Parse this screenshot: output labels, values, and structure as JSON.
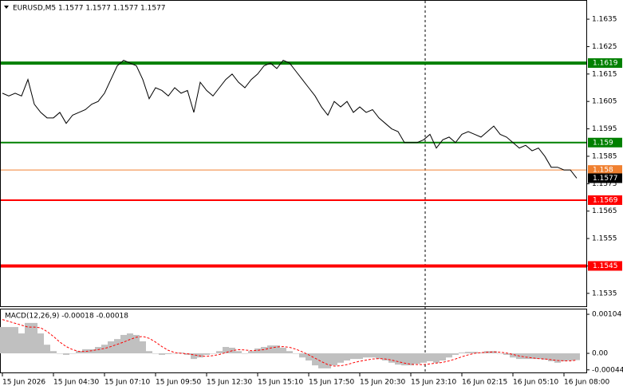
{
  "chart_data": [
    {
      "type": "line",
      "title": "EURUSD,M5  1.1577 1.1577 1.1577 1.1577",
      "categories": [
        "15 Jun 2026",
        null,
        null,
        null,
        null,
        null,
        null,
        null,
        "15 Jun 04:30",
        null,
        null,
        null,
        null,
        null,
        null,
        null,
        "15 Jun 07:10",
        null,
        null,
        null,
        null,
        null,
        null,
        null,
        "15 Jun 09:50",
        null,
        null,
        null,
        null,
        null,
        null,
        null,
        "15 Jun 12:30",
        null,
        null,
        null,
        null,
        null,
        null,
        null,
        "15 Jun 15:10",
        null,
        null,
        null,
        null,
        null,
        null,
        null,
        "15 Jun 17:50",
        null,
        null,
        null,
        null,
        null,
        null,
        null,
        "15 Jun 20:30",
        null,
        null,
        null,
        null,
        null,
        null,
        null,
        "15 Jun 23:10",
        null,
        null,
        null,
        null,
        null,
        null,
        null,
        "16 Jun 02:15",
        null,
        null,
        null,
        null,
        null,
        null,
        null,
        "16 Jun 05:10",
        null,
        null,
        null,
        null,
        null,
        null,
        null,
        "16 Jun 08:00",
        null,
        null
      ],
      "series": [
        {
          "color": "#000000",
          "values": [
            1.1608,
            1.1607,
            1.1608,
            1.1607,
            1.1613,
            1.1604,
            1.1601,
            1.1599,
            1.1599,
            1.1601,
            1.1597,
            1.16,
            1.1601,
            1.1602,
            1.1604,
            1.1605,
            1.1608,
            1.1613,
            1.1618,
            1.162,
            1.1619,
            1.1618,
            1.1613,
            1.1606,
            1.161,
            1.1609,
            1.1607,
            1.161,
            1.1608,
            1.1609,
            1.1601,
            1.1612,
            1.1609,
            1.1607,
            1.161,
            1.1613,
            1.1615,
            1.1612,
            1.161,
            1.1613,
            1.1615,
            1.1618,
            1.1619,
            1.1617,
            1.162,
            1.1619,
            1.1616,
            1.1613,
            1.161,
            1.1607,
            1.1603,
            1.16,
            1.1605,
            1.1603,
            1.1605,
            1.1601,
            1.1603,
            1.1601,
            1.1602,
            1.1599,
            1.1597,
            1.1595,
            1.1594,
            1.159,
            1.159,
            1.159,
            1.1591,
            1.1593,
            1.1588,
            1.1591,
            1.1592,
            1.159,
            1.1593,
            1.1594,
            1.1593,
            1.1592,
            1.1594,
            1.1596,
            1.1593,
            1.1592,
            1.159,
            1.1588,
            1.1589,
            1.1587,
            1.1588,
            1.1585,
            1.1581,
            1.1581,
            1.158,
            1.158,
            1.1577
          ]
        }
      ],
      "ylim": [
        1.153,
        1.1642
      ],
      "yticks": [
        1.1635,
        1.1625,
        1.1615,
        1.1605,
        1.1595,
        1.1585,
        1.1575,
        1.1565,
        1.1555,
        1.1545,
        1.1535
      ],
      "levels": [
        {
          "value": 1.1619,
          "color": "#008000",
          "line_width": 4
        },
        {
          "value": 1.159,
          "color": "#008000",
          "line_width": 2
        },
        {
          "value": 1.158,
          "color": "#f08030",
          "line_width": 1
        },
        {
          "value": 1.1569,
          "color": "#ff0000",
          "line_width": 2
        },
        {
          "value": 1.1545,
          "color": "#ff0000",
          "line_width": 4
        }
      ],
      "last_price_color": "#000000"
    },
    {
      "type": "macd",
      "title": "MACD(12,26,9) -0.00018 -0.00018",
      "series": [
        {
          "kind": "bar",
          "color": "#c0c0c0",
          "values": [
            0.0007,
            0.0007,
            0.0007,
            0.00053,
            0.00081,
            0.00081,
            0.00053,
            0.00023,
            6e-05,
            0,
            -4e-05,
            0,
            6e-05,
            0.00011,
            0.00011,
            0.00017,
            0.00023,
            0.00032,
            0.00038,
            0.00049,
            0.00053,
            0.00049,
            0.00032,
            6e-05,
            0,
            -4e-05,
            -2e-05,
            0,
            2e-05,
            -4e-05,
            -0.00015,
            -0.00011,
            -4e-05,
            0,
            6e-05,
            0.00017,
            0.00015,
            6e-05,
            0,
            6e-05,
            0.00013,
            0.00017,
            0.00021,
            0.00021,
            0.00015,
            6e-05,
            0,
            -0.00011,
            -0.00019,
            -0.00032,
            -0.0004,
            -0.0004,
            -0.00032,
            -0.00025,
            -0.00019,
            -0.00015,
            -0.00015,
            -0.00011,
            -0.00011,
            -0.00015,
            -0.00019,
            -0.00025,
            -0.0003,
            -0.00032,
            -0.00032,
            -0.00028,
            -0.00025,
            -0.00021,
            -0.00025,
            -0.00019,
            -0.00011,
            -4e-05,
            2e-05,
            4e-05,
            4e-05,
            2e-05,
            6e-05,
            6e-05,
            0,
            -4e-05,
            -0.00011,
            -0.00015,
            -0.00015,
            -0.00015,
            -0.00015,
            -0.00017,
            -0.00021,
            -0.00025,
            -0.00021,
            -0.00019,
            -0.00018
          ]
        },
        {
          "kind": "dashed-line",
          "color": "#ff0000",
          "values": [
            0.0009,
            0.00085,
            0.0008,
            0.00075,
            0.0007,
            0.0007,
            0.00068,
            0.00058,
            0.00045,
            0.0003,
            0.00018,
            0.0001,
            5e-05,
            5e-05,
            7e-05,
            0.0001,
            0.00013,
            0.00018,
            0.00024,
            0.0003,
            0.00037,
            0.00043,
            0.00045,
            0.0004,
            0.0003,
            0.00018,
            8e-05,
            2e-05,
            0,
            -1e-05,
            -4e-05,
            -7e-05,
            -8e-05,
            -6e-05,
            -3e-05,
            2e-05,
            7e-05,
            0.0001,
            9e-05,
            7e-05,
            8e-05,
            0.0001,
            0.00014,
            0.00017,
            0.00018,
            0.00016,
            0.00011,
            4e-05,
            -4e-05,
            -0.00013,
            -0.00022,
            -0.0003,
            -0.00034,
            -0.00033,
            -0.0003,
            -0.00025,
            -0.00021,
            -0.00018,
            -0.00015,
            -0.00014,
            -0.00015,
            -0.00018,
            -0.00022,
            -0.00026,
            -0.00029,
            -0.0003,
            -0.0003,
            -0.00028,
            -0.00026,
            -0.00024,
            -0.0002,
            -0.00015,
            -9e-05,
            -4e-05,
            0,
            2e-05,
            3e-05,
            4e-05,
            3e-05,
            1e-05,
            -3e-05,
            -7e-05,
            -0.0001,
            -0.00012,
            -0.00014,
            -0.00015,
            -0.00017,
            -0.00019,
            -0.0002,
            -0.0002,
            -0.00018
          ]
        }
      ],
      "ylim": [
        -0.00053,
        0.00119
      ],
      "yticks": [
        0.00104,
        {
          "value": 0,
          "label": "0.00"
        },
        -0.00044
      ]
    }
  ]
}
